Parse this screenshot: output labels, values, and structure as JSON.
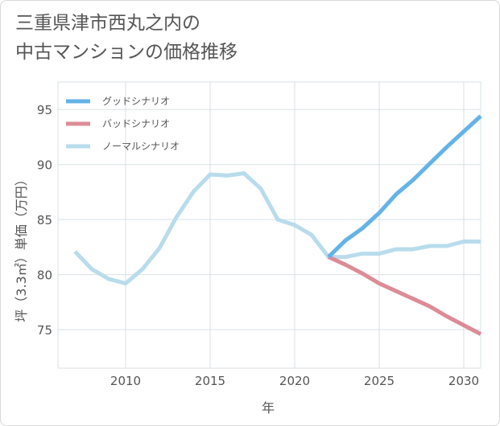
{
  "title_line1": "三重県津市西丸之内の",
  "title_line2": "中古マンションの価格推移",
  "chart_data": {
    "type": "line",
    "title": "三重県津市西丸之内の中古マンションの価格推移",
    "xlabel": "年",
    "ylabel": "坪（3.3㎡）単価（万円）",
    "xlim": [
      2006,
      2031
    ],
    "ylim": [
      71.5,
      97.5
    ],
    "xticks": [
      2010,
      2015,
      2020,
      2025,
      2030
    ],
    "yticks": [
      75,
      80,
      85,
      90,
      95
    ],
    "grid": true,
    "legend_position": "top-left",
    "series": [
      {
        "name": "グッドシナリオ",
        "color": "#63b3e8",
        "x": [
          2022,
          2023,
          2024,
          2025,
          2026,
          2027,
          2028,
          2029,
          2030,
          2031
        ],
        "y": [
          81.6,
          83.1,
          84.2,
          85.6,
          87.3,
          88.6,
          90.1,
          91.6,
          93.0,
          94.4
        ]
      },
      {
        "name": "バッドシナリオ",
        "color": "#dc8c96",
        "x": [
          2022,
          2023,
          2024,
          2025,
          2026,
          2027,
          2028,
          2029,
          2030,
          2031
        ],
        "y": [
          81.6,
          80.9,
          80.1,
          79.2,
          78.5,
          77.8,
          77.1,
          76.2,
          75.4,
          74.6
        ]
      },
      {
        "name": "ノーマルシナリオ",
        "color": "#b8dcec",
        "x": [
          2007,
          2008,
          2009,
          2010,
          2011,
          2012,
          2013,
          2014,
          2015,
          2016,
          2017,
          2018,
          2019,
          2020,
          2021,
          2022,
          2023,
          2024,
          2025,
          2026,
          2027,
          2028,
          2029,
          2030,
          2031
        ],
        "y": [
          82.1,
          80.5,
          79.6,
          79.2,
          80.5,
          82.4,
          85.2,
          87.5,
          89.1,
          89.0,
          89.2,
          87.8,
          85.0,
          84.5,
          83.6,
          81.6,
          81.6,
          81.9,
          81.9,
          82.3,
          82.3,
          82.6,
          82.6,
          83.0,
          83.0
        ]
      }
    ]
  }
}
